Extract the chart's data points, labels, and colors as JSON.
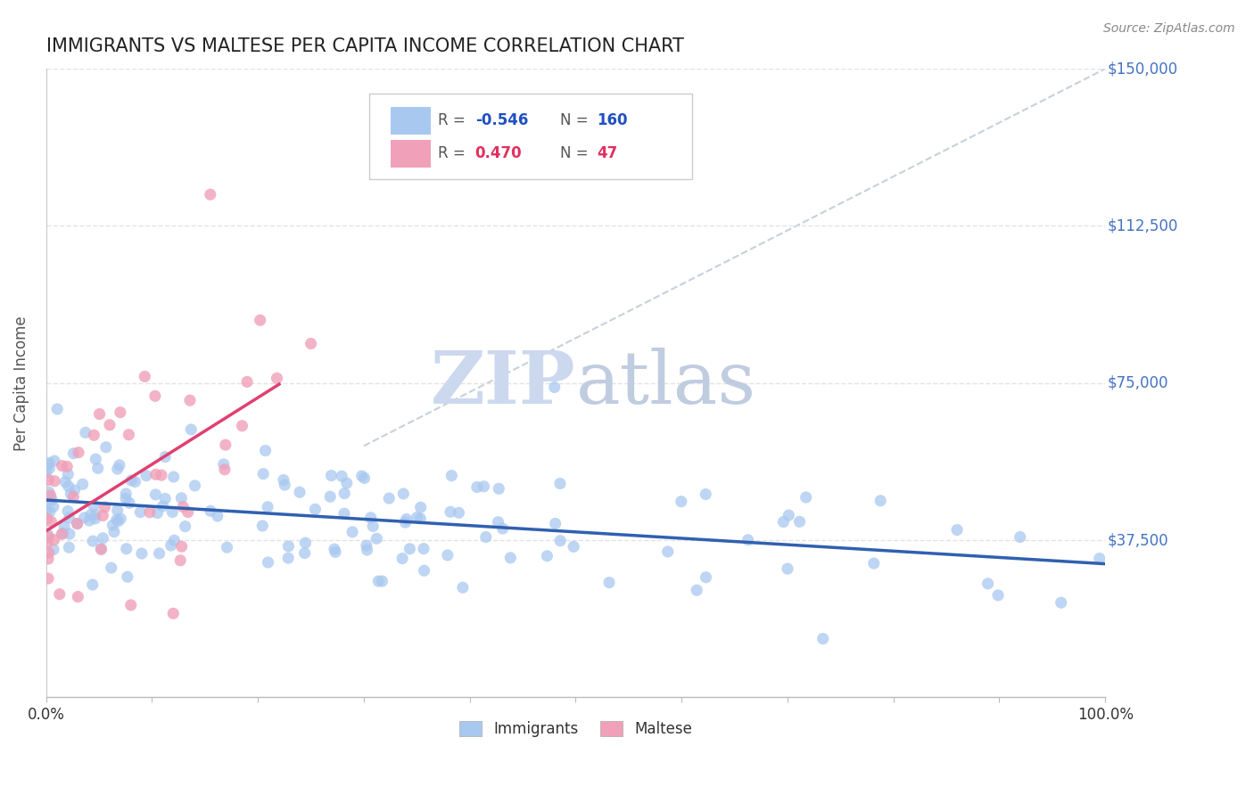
{
  "title": "IMMIGRANTS VS MALTESE PER CAPITA INCOME CORRELATION CHART",
  "source_text": "Source: ZipAtlas.com",
  "ylabel": "Per Capita Income",
  "xlim": [
    0.0,
    1.0
  ],
  "ylim": [
    0,
    150000
  ],
  "yticks": [
    0,
    37500,
    75000,
    112500,
    150000
  ],
  "ytick_labels": [
    "",
    "$37,500",
    "$75,000",
    "$112,500",
    "$150,000"
  ],
  "immigrants_R": -0.546,
  "immigrants_N": 160,
  "maltese_R": 0.47,
  "maltese_N": 47,
  "blue_color": "#a8c8f0",
  "pink_color": "#f0a0b8",
  "blue_line_color": "#3060b0",
  "pink_line_color": "#e04070",
  "axis_color": "#cccccc",
  "grid_color": "#dddddd",
  "title_color": "#222222",
  "yaxis_label_color": "#4472c4",
  "source_color": "#888888",
  "watermark_zip_color": "#c8d8f0",
  "watermark_atlas_color": "#c0c8e0",
  "background_color": "#ffffff",
  "legend_R_color": "#e03060",
  "legend_blue_R_color": "#2050c0",
  "legend_N_color": "#2050c0",
  "legend_pink_N_color": "#e03060"
}
